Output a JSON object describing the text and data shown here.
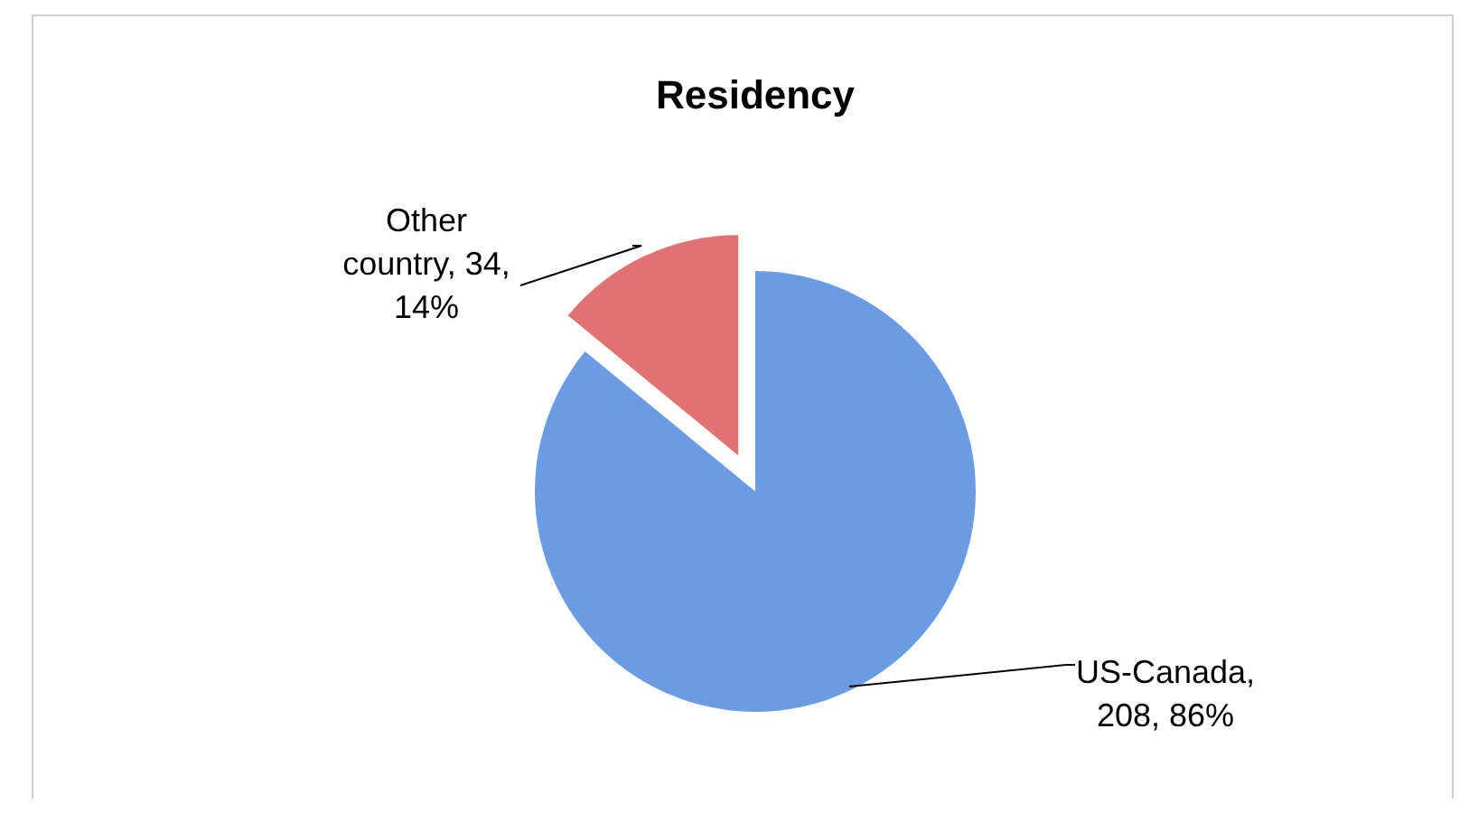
{
  "chart_data": {
    "type": "pie",
    "title": "Residency",
    "categories": [
      "US-Canada",
      "Other country"
    ],
    "values": [
      208,
      34
    ],
    "value_labels": [
      ", 208, 86%",
      ", 34, 14%"
    ],
    "colors": [
      "#6a9be3",
      "#e27272"
    ]
  }
}
